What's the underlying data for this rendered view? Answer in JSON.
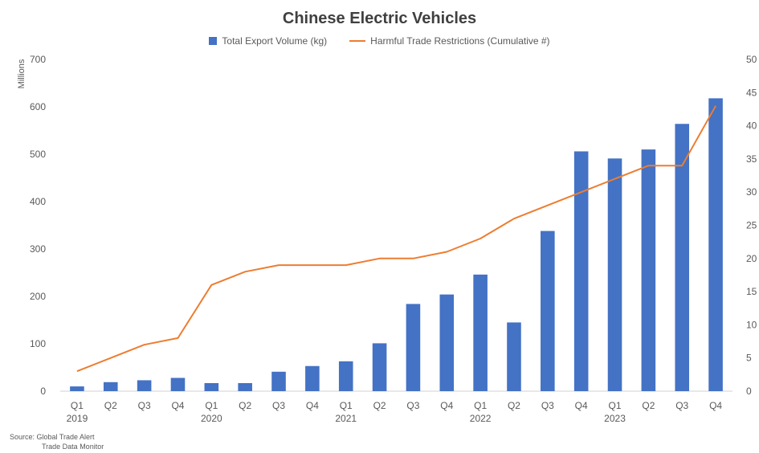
{
  "colors": {
    "bar": "#4472C4",
    "line": "#ED7D31",
    "grid": "#e6e6e6"
  },
  "legend": {
    "bar_label": "Total Export Volume (kg)",
    "line_label": "Harmful Trade Restrictions (Cumulative #)"
  },
  "source": {
    "line1": "Source: Global Trade Alert",
    "line2": "Trade Data Monitor"
  },
  "chart_data": {
    "type": "bar+line",
    "title": "Chinese Electric Vehicles",
    "ylabel": "Millions",
    "categories": [
      "Q1",
      "Q2",
      "Q3",
      "Q4",
      "Q1",
      "Q2",
      "Q3",
      "Q4",
      "Q1",
      "Q2",
      "Q3",
      "Q4",
      "Q1",
      "Q2",
      "Q3",
      "Q4",
      "Q1",
      "Q2",
      "Q3",
      "Q4"
    ],
    "years": [
      {
        "label": "2019",
        "index": 0
      },
      {
        "label": "2020",
        "index": 4
      },
      {
        "label": "2021",
        "index": 8
      },
      {
        "label": "2022",
        "index": 12
      },
      {
        "label": "2023",
        "index": 16
      }
    ],
    "ylim_left": [
      0,
      700
    ],
    "yticks_left": [
      0,
      100,
      200,
      300,
      400,
      500,
      600,
      700
    ],
    "ylim_right": [
      0,
      50
    ],
    "yticks_right": [
      0,
      5,
      10,
      15,
      20,
      25,
      30,
      35,
      40,
      45,
      50
    ],
    "grid": false,
    "legend_position": "top",
    "series": [
      {
        "name": "Total Export Volume (kg)",
        "type": "bar",
        "axis": "left",
        "values": [
          10,
          19,
          23,
          28,
          17,
          17,
          41,
          53,
          63,
          101,
          184,
          204,
          246,
          145,
          338,
          506,
          491,
          510,
          564,
          618
        ]
      },
      {
        "name": "Harmful Trade Restrictions (Cumulative #)",
        "type": "line",
        "axis": "right",
        "values": [
          3,
          5,
          7,
          8,
          16,
          18,
          19,
          19,
          19,
          20,
          20,
          21,
          23,
          26,
          28,
          30,
          32,
          34,
          34,
          43
        ]
      }
    ]
  }
}
